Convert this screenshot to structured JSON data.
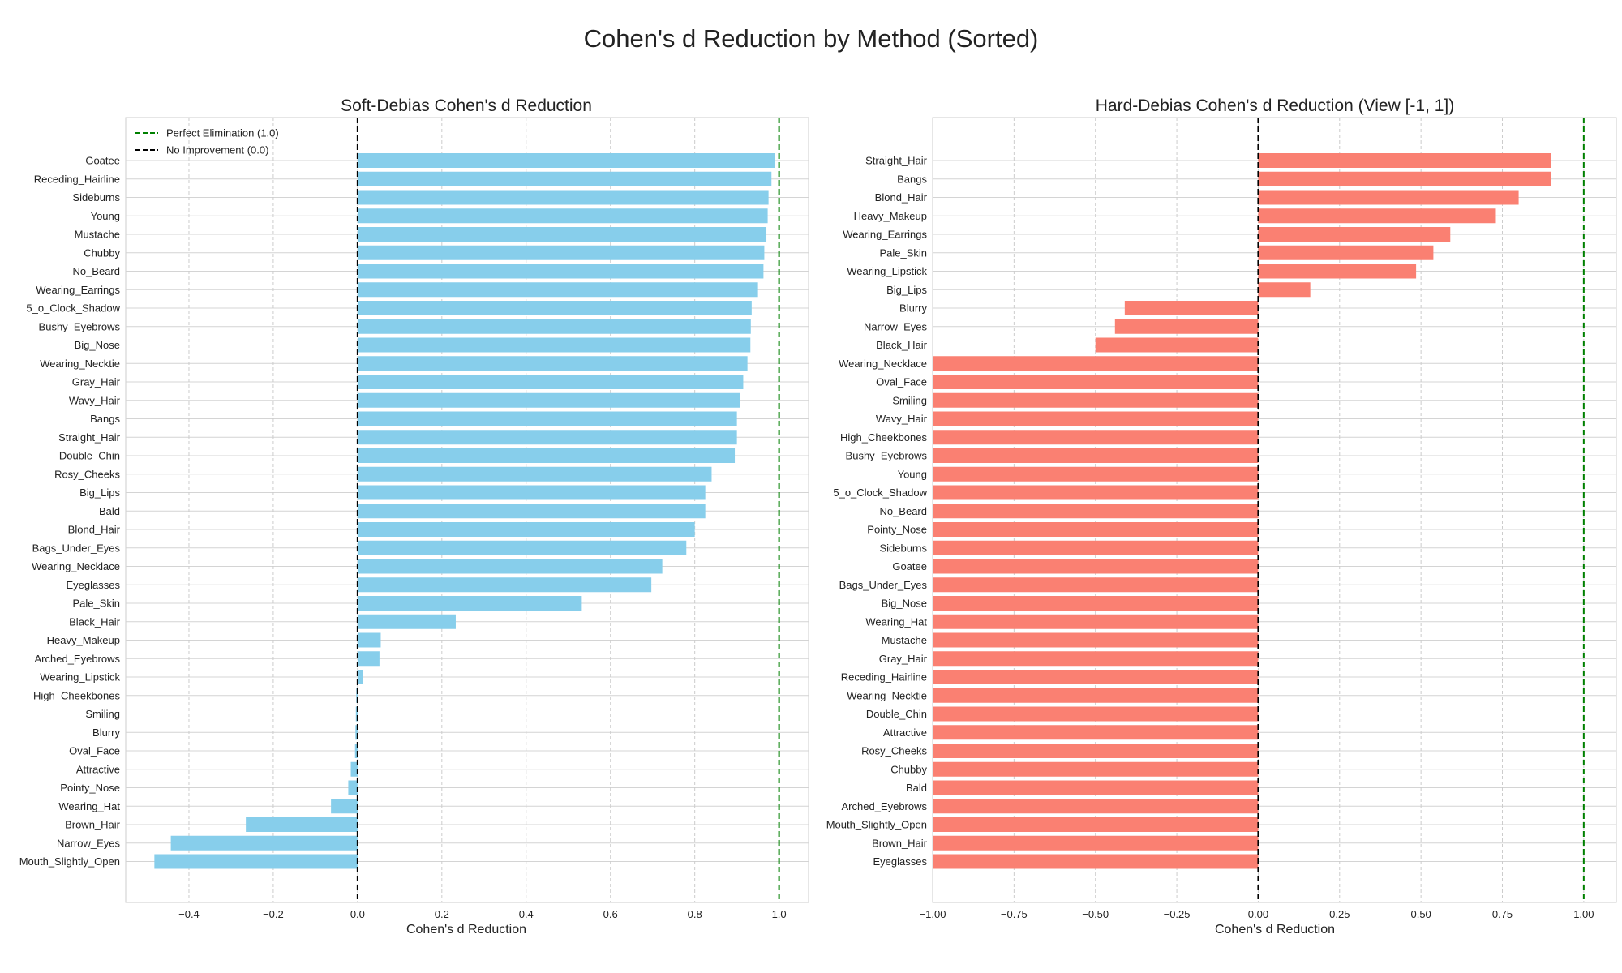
{
  "figure": {
    "suptitle": "Cohen's d Reduction by Method (Sorted)"
  },
  "chart_data": [
    {
      "type": "bar",
      "orientation": "horizontal",
      "title": "Soft-Debias Cohen's d Reduction",
      "xlabel": "Cohen's d Reduction",
      "ylabel": "",
      "xlim": [
        -0.55,
        1.07
      ],
      "xticks": [
        -0.4,
        -0.2,
        0.0,
        0.2,
        0.4,
        0.6,
        0.8,
        1.0
      ],
      "xtick_labels": [
        "−0.4",
        "−0.2",
        "0.0",
        "0.2",
        "0.4",
        "0.6",
        "0.8",
        "1.0"
      ],
      "grid": true,
      "bar_color": "#87CEEB",
      "reference_lines": [
        {
          "label": "Perfect Elimination (1.0)",
          "x": 1.0,
          "color": "#008000",
          "style": "dashed"
        },
        {
          "label": "No Improvement (0.0)",
          "x": 0.0,
          "color": "#000000",
          "style": "dashed"
        }
      ],
      "legend_position": "top-left",
      "categories": [
        "Goatee",
        "Receding_Hairline",
        "Sideburns",
        "Young",
        "Mustache",
        "Chubby",
        "No_Beard",
        "Wearing_Earrings",
        "5_o_Clock_Shadow",
        "Bushy_Eyebrows",
        "Big_Nose",
        "Wearing_Necktie",
        "Gray_Hair",
        "Wavy_Hair",
        "Bangs",
        "Straight_Hair",
        "Double_Chin",
        "Rosy_Cheeks",
        "Big_Lips",
        "Bald",
        "Blond_Hair",
        "Bags_Under_Eyes",
        "Wearing_Necklace",
        "Eyeglasses",
        "Pale_Skin",
        "Black_Hair",
        "Heavy_Makeup",
        "Arched_Eyebrows",
        "Wearing_Lipstick",
        "High_Cheekbones",
        "Smiling",
        "Blurry",
        "Oval_Face",
        "Attractive",
        "Pointy_Nose",
        "Wearing_Hat",
        "Brown_Hair",
        "Narrow_Eyes",
        "Mouth_Slightly_Open"
      ],
      "values": [
        0.99,
        0.982,
        0.975,
        0.973,
        0.97,
        0.965,
        0.963,
        0.95,
        0.935,
        0.933,
        0.932,
        0.925,
        0.915,
        0.908,
        0.9,
        0.9,
        0.895,
        0.84,
        0.825,
        0.825,
        0.8,
        0.78,
        0.723,
        0.697,
        0.532,
        0.233,
        0.055,
        0.052,
        0.013,
        -0.003,
        -0.004,
        -0.005,
        -0.006,
        -0.016,
        -0.022,
        -0.063,
        -0.265,
        -0.443,
        -0.482
      ]
    },
    {
      "type": "bar",
      "orientation": "horizontal",
      "title": "Hard-Debias Cohen's d Reduction (View [-1, 1])",
      "xlabel": "Cohen's d Reduction",
      "ylabel": "",
      "xlim": [
        -1.0,
        1.1
      ],
      "xticks": [
        -1.0,
        -0.75,
        -0.5,
        -0.25,
        0.0,
        0.25,
        0.5,
        0.75,
        1.0
      ],
      "xtick_labels": [
        "−1.00",
        "−0.75",
        "−0.50",
        "−0.25",
        "0.00",
        "0.25",
        "0.50",
        "0.75",
        "1.00"
      ],
      "grid": true,
      "bar_color": "#FA8072",
      "reference_lines": [
        {
          "x": 1.0,
          "color": "#008000",
          "style": "dashed"
        },
        {
          "x": 0.0,
          "color": "#000000",
          "style": "dashed"
        }
      ],
      "categories": [
        "Straight_Hair",
        "Bangs",
        "Blond_Hair",
        "Heavy_Makeup",
        "Wearing_Earrings",
        "Pale_Skin",
        "Wearing_Lipstick",
        "Big_Lips",
        "Blurry",
        "Narrow_Eyes",
        "Black_Hair",
        "Wearing_Necklace",
        "Oval_Face",
        "Smiling",
        "Wavy_Hair",
        "High_Cheekbones",
        "Bushy_Eyebrows",
        "Young",
        "5_o_Clock_Shadow",
        "No_Beard",
        "Pointy_Nose",
        "Sideburns",
        "Goatee",
        "Bags_Under_Eyes",
        "Big_Nose",
        "Wearing_Hat",
        "Mustache",
        "Gray_Hair",
        "Receding_Hairline",
        "Wearing_Necktie",
        "Double_Chin",
        "Attractive",
        "Rosy_Cheeks",
        "Chubby",
        "Bald",
        "Arched_Eyebrows",
        "Mouth_Slightly_Open",
        "Brown_Hair",
        "Eyeglasses"
      ],
      "values": [
        0.9,
        0.9,
        0.8,
        0.73,
        0.59,
        0.538,
        0.485,
        0.16,
        -0.41,
        -0.44,
        -0.5,
        -1.0,
        -1.0,
        -1.0,
        -1.0,
        -1.0,
        -1.0,
        -1.0,
        -1.0,
        -1.0,
        -1.0,
        -1.0,
        -1.0,
        -1.0,
        -1.0,
        -1.0,
        -1.0,
        -1.0,
        -1.0,
        -1.0,
        -1.0,
        -1.0,
        -1.0,
        -1.0,
        -1.0,
        -1.0,
        -1.0,
        -1.0,
        -1.0
      ]
    }
  ]
}
